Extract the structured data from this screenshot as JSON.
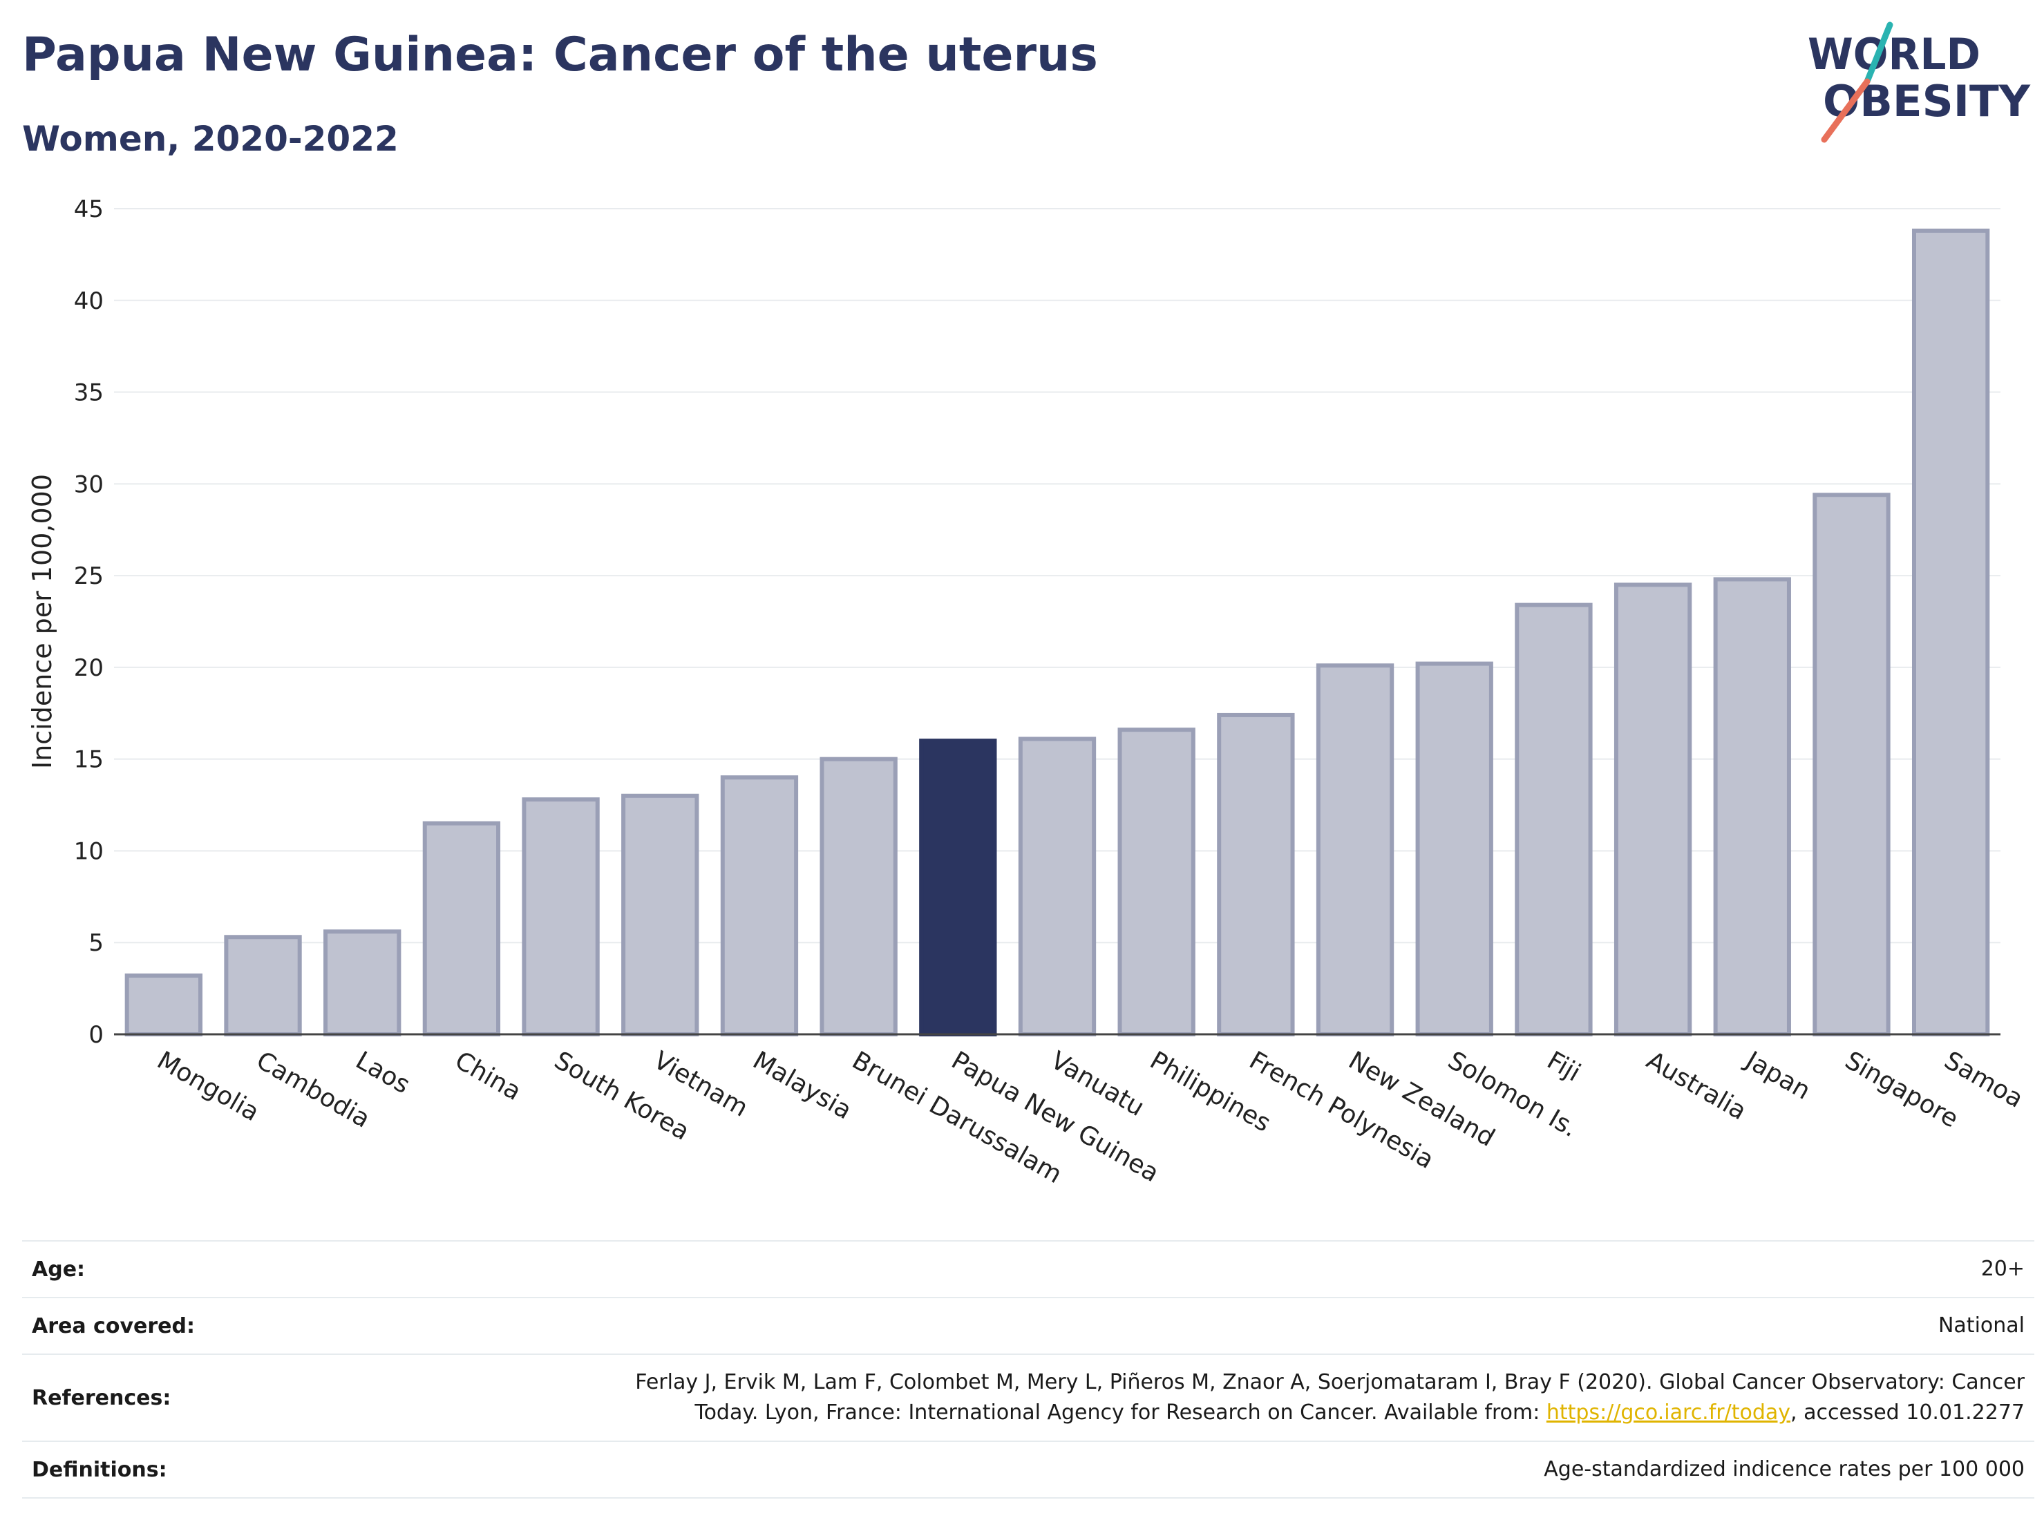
{
  "title": "Papua New Guinea: Cancer of the uterus",
  "subtitle": "Women, 2020-2022",
  "logo": {
    "line1": "WORLD",
    "line2": "OBESITY",
    "accent_colors": [
      "#2ab3b1",
      "#e8705a"
    ]
  },
  "colors": {
    "highlight": "#2b3560",
    "bar_fill": "#bfc2d0",
    "bar_stroke": "#9a9fb6",
    "grid": "#e8ebee",
    "axis": "#444444"
  },
  "chart_data": {
    "type": "bar",
    "categories": [
      "Mongolia",
      "Cambodia",
      "Laos",
      "China",
      "South Korea",
      "Vietnam",
      "Malaysia",
      "Brunei Darussalam",
      "Papua New Guinea",
      "Vanuatu",
      "Philippines",
      "French Polynesia",
      "New Zealand",
      "Solomon Is.",
      "Fiji",
      "Australia",
      "Japan",
      "Singapore",
      "Samoa"
    ],
    "values": [
      3.2,
      5.3,
      5.6,
      11.5,
      12.8,
      13.0,
      14.0,
      15.0,
      16.0,
      16.1,
      16.6,
      17.4,
      20.1,
      20.2,
      23.4,
      24.5,
      24.8,
      29.4,
      43.8
    ],
    "highlight": "Papua New Guinea",
    "title": "Papua New Guinea: Cancer of the uterus",
    "subtitle": "Women, 2020-2022",
    "ylabel": "Incidence per 100,000",
    "ylim": [
      0,
      45
    ],
    "yticks": [
      0,
      5,
      10,
      15,
      20,
      25,
      30,
      35,
      40,
      45
    ],
    "grid": true,
    "legend": "none"
  },
  "info": {
    "age": {
      "label": "Age:",
      "value": "20+"
    },
    "area": {
      "label": "Area covered:",
      "value": "National"
    },
    "references": {
      "label": "References:",
      "line1": "Ferlay J, Ervik M, Lam F, Colombet M, Mery L, Piñeros M, Znaor A, Soerjomataram I, Bray F (2020). Global Cancer Observatory: Cancer",
      "line2_pre": "Today. Lyon, France: International Agency for Research on Cancer. Available from: ",
      "link": "https://gco.iarc.fr/today",
      "line2_post": ", accessed 10.01.2277"
    },
    "definitions": {
      "label": "Definitions:",
      "value": "Age-standardized indicence rates per 100 000"
    }
  }
}
